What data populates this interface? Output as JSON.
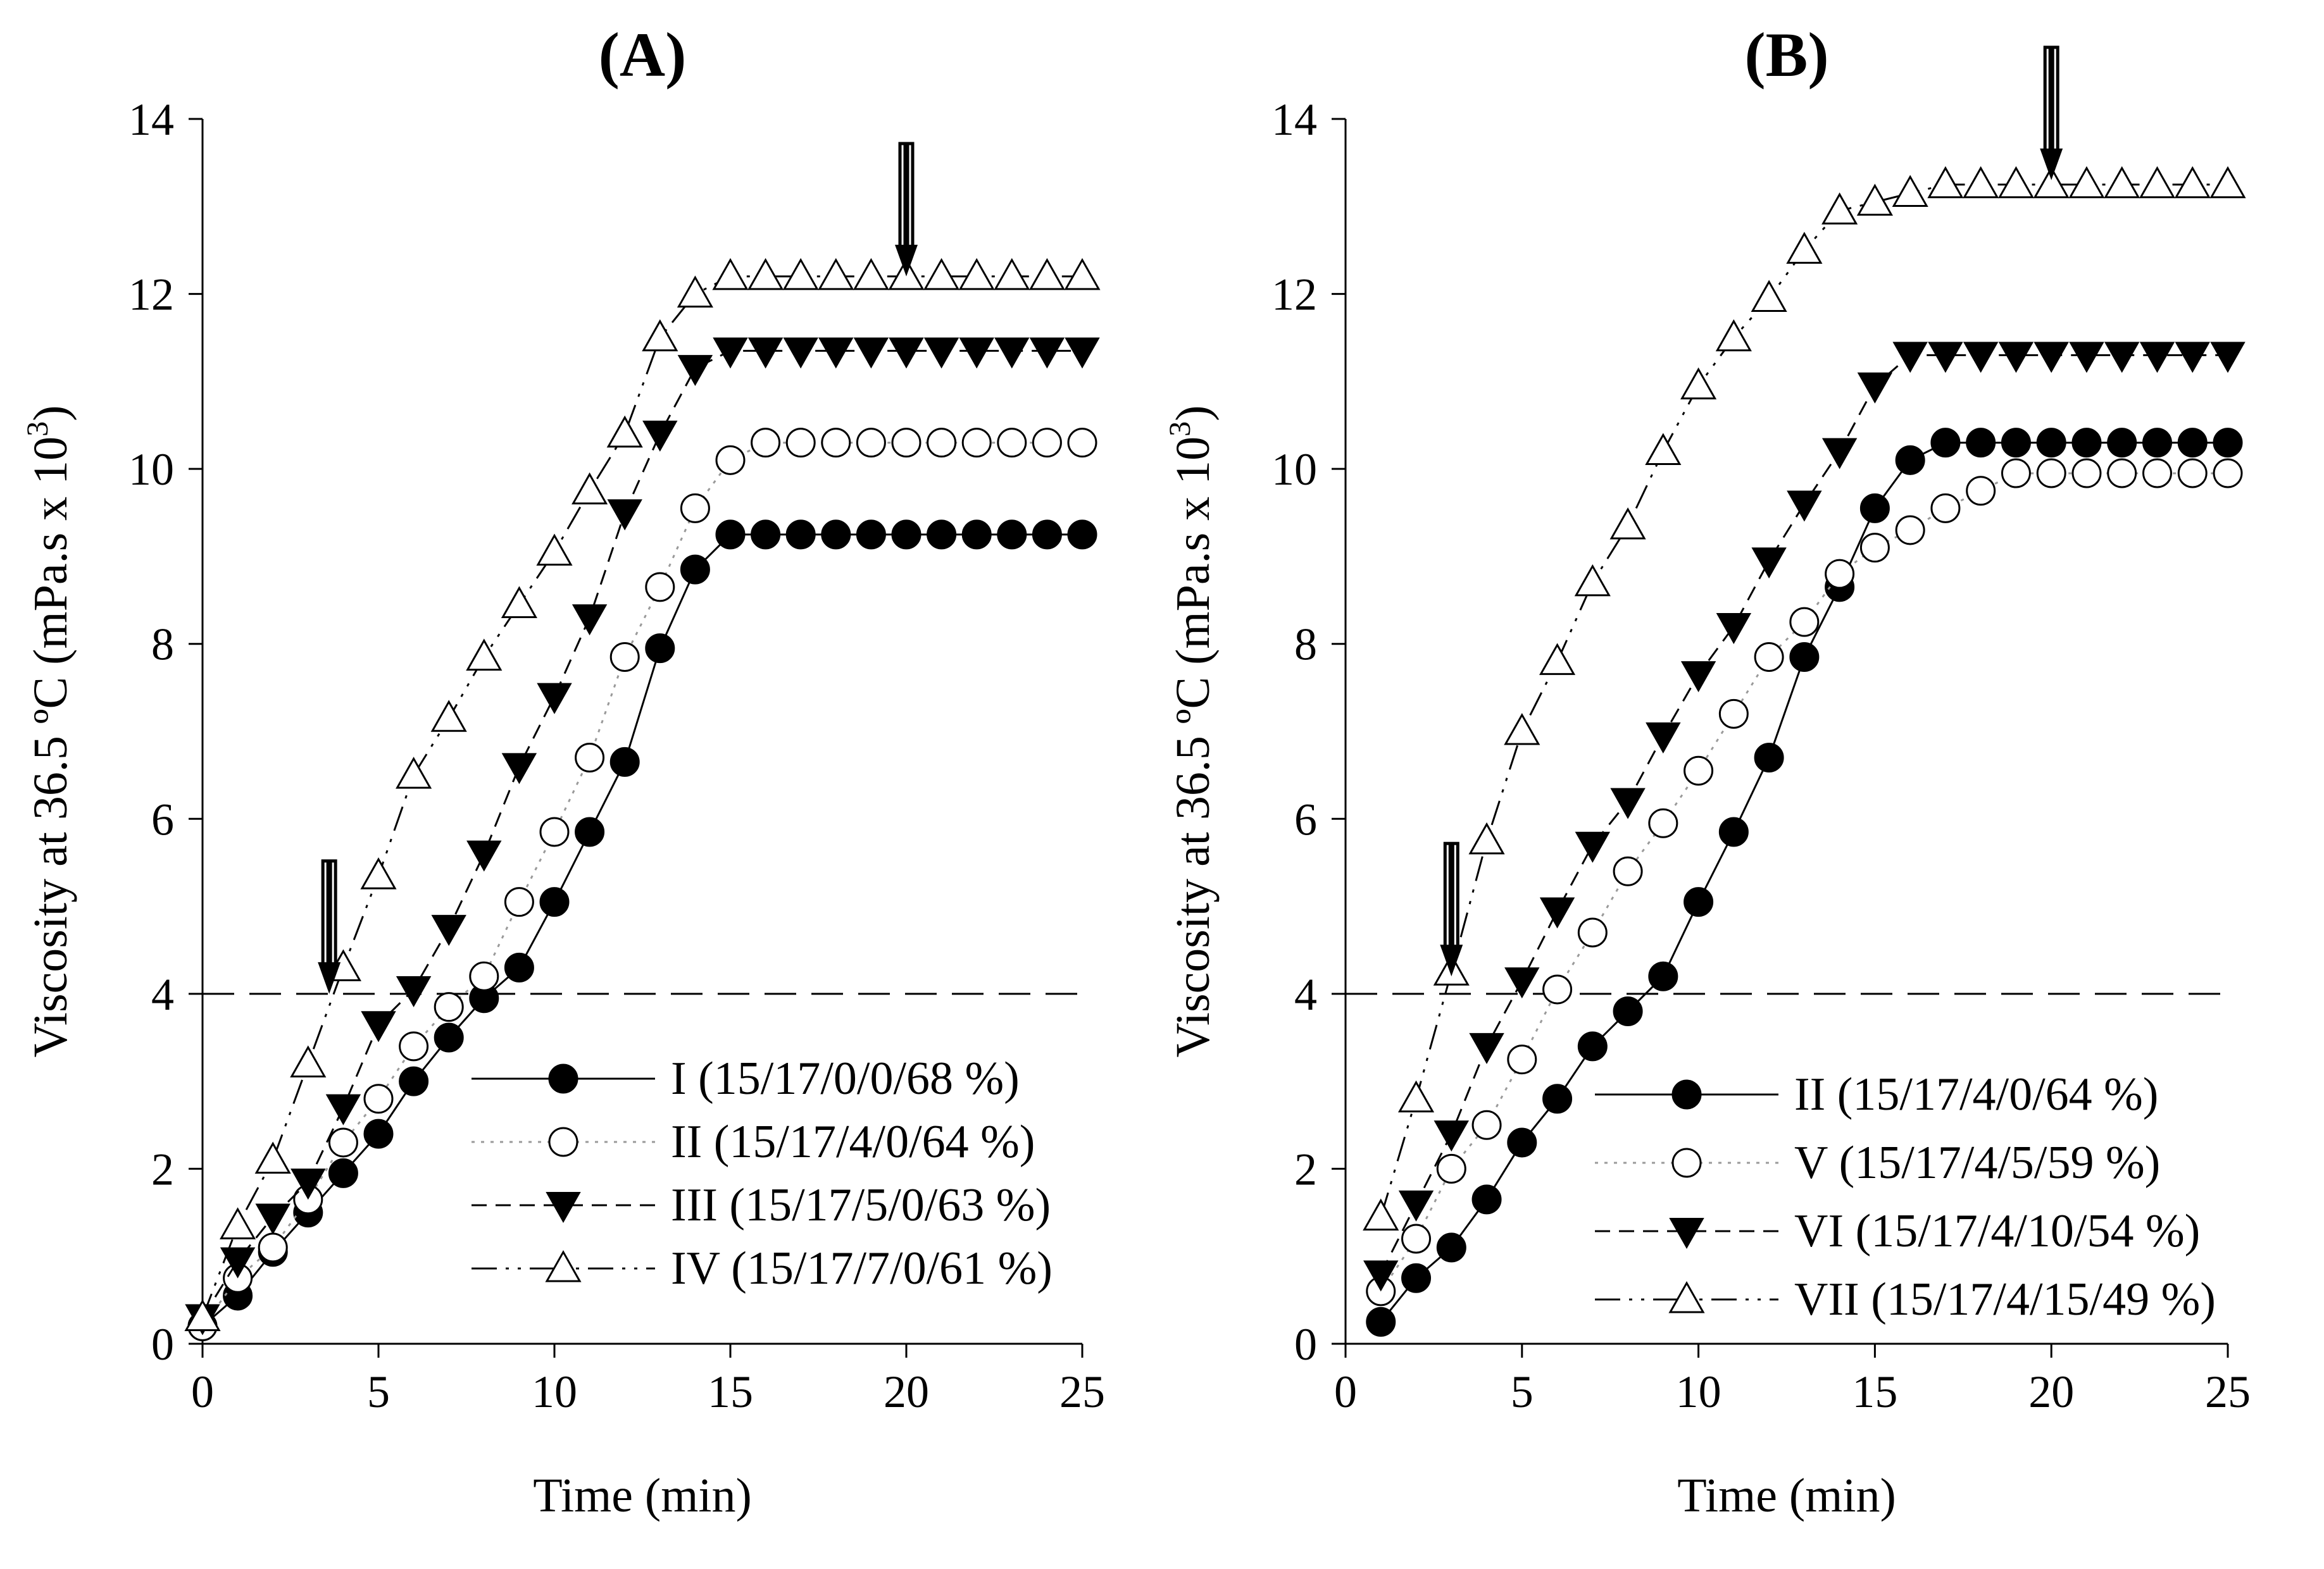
{
  "chart_data": [
    {
      "type": "line",
      "panel": "A",
      "title": "(A)",
      "xlabel": "Time (min)",
      "ylabel": "Viscosity at 36.5 ºC (mPa.s x 10^3)",
      "xlim": [
        0,
        25
      ],
      "ylim": [
        0,
        14
      ],
      "xticks": [
        0,
        5,
        10,
        15,
        20,
        25
      ],
      "yticks": [
        0,
        2,
        4,
        6,
        8,
        10,
        12,
        14
      ],
      "grid": false,
      "legend_position": "bottom-right",
      "reference_line": {
        "y": 4,
        "x_range": [
          0,
          25
        ],
        "style": "long-dash"
      },
      "arrows": [
        {
          "x": 3.6,
          "y_tip": 4.0
        },
        {
          "x": 20,
          "y_tip": 12.2
        }
      ],
      "series": [
        {
          "name": "I (15/17/0/0/68 %)",
          "marker": "filled-circle",
          "line": "solid",
          "x": [
            0,
            1,
            2,
            3,
            4,
            5,
            6,
            7,
            8,
            9,
            10,
            11,
            12,
            13,
            14,
            15,
            16,
            17,
            18,
            19,
            20,
            21,
            22,
            23,
            24,
            25
          ],
          "y": [
            0.2,
            0.55,
            1.05,
            1.5,
            1.95,
            2.4,
            3.0,
            3.5,
            3.95,
            4.3,
            5.05,
            5.85,
            6.65,
            7.95,
            8.85,
            9.25,
            9.25,
            9.25,
            9.25,
            9.25,
            9.25,
            9.25,
            9.25,
            9.25,
            9.25,
            9.25
          ]
        },
        {
          "name": "II (15/17/4/0/64 %)",
          "marker": "open-circle",
          "line": "dotted",
          "x": [
            0,
            1,
            2,
            3,
            4,
            5,
            6,
            7,
            8,
            9,
            10,
            11,
            12,
            13,
            14,
            15,
            16,
            17,
            18,
            19,
            20,
            21,
            22,
            23,
            24,
            25
          ],
          "y": [
            0.2,
            0.75,
            1.1,
            1.65,
            2.3,
            2.8,
            3.4,
            3.85,
            4.2,
            5.05,
            5.85,
            6.7,
            7.85,
            8.65,
            9.55,
            10.1,
            10.3,
            10.3,
            10.3,
            10.3,
            10.3,
            10.3,
            10.3,
            10.3,
            10.3,
            10.3
          ]
        },
        {
          "name": "III (15/17/5/0/63 %)",
          "marker": "filled-down-triangle",
          "line": "dashed",
          "x": [
            0,
            1,
            2,
            3,
            4,
            5,
            6,
            7,
            8,
            9,
            10,
            11,
            12,
            13,
            14,
            15,
            16,
            17,
            18,
            19,
            20,
            21,
            22,
            23,
            24,
            25
          ],
          "y": [
            0.3,
            0.95,
            1.45,
            1.85,
            2.7,
            3.65,
            4.05,
            4.75,
            5.6,
            6.6,
            7.4,
            8.3,
            9.5,
            10.4,
            11.15,
            11.35,
            11.35,
            11.35,
            11.35,
            11.35,
            11.35,
            11.35,
            11.35,
            11.35,
            11.35,
            11.35
          ]
        },
        {
          "name": "IV (15/17/7/0/61 %)",
          "marker": "open-up-triangle",
          "line": "dash-dot-dot",
          "x": [
            0,
            1,
            2,
            3,
            4,
            5,
            6,
            7,
            8,
            9,
            10,
            11,
            12,
            13,
            14,
            15,
            16,
            17,
            18,
            19,
            20,
            21,
            22,
            23,
            24,
            25
          ],
          "y": [
            0.3,
            1.35,
            2.1,
            3.2,
            4.3,
            5.35,
            6.5,
            7.15,
            7.85,
            8.45,
            9.05,
            9.75,
            10.4,
            11.5,
            12.0,
            12.2,
            12.2,
            12.2,
            12.2,
            12.2,
            12.2,
            12.2,
            12.2,
            12.2,
            12.2,
            12.2
          ]
        }
      ]
    },
    {
      "type": "line",
      "panel": "B",
      "title": "(B)",
      "xlabel": "Time (min)",
      "ylabel": "Viscosity at 36.5 ºC (mPa.s x 10^3)",
      "xlim": [
        0,
        25
      ],
      "ylim": [
        0,
        14
      ],
      "xticks": [
        0,
        5,
        10,
        15,
        20,
        25
      ],
      "yticks": [
        0,
        2,
        4,
        6,
        8,
        10,
        12,
        14
      ],
      "grid": false,
      "legend_position": "bottom-right",
      "reference_line": {
        "y": 4,
        "x_range": [
          0,
          25
        ],
        "style": "long-dash"
      },
      "arrows": [
        {
          "x": 3,
          "y_tip": 4.2
        },
        {
          "x": 20,
          "y_tip": 13.3
        }
      ],
      "series": [
        {
          "name": "II (15/17/4/0/64 %)",
          "marker": "filled-circle",
          "line": "solid",
          "x": [
            1,
            2,
            3,
            4,
            5,
            6,
            7,
            8,
            9,
            10,
            11,
            12,
            13,
            14,
            15,
            16,
            17,
            18,
            19,
            20,
            21,
            22,
            23,
            24,
            25
          ],
          "y": [
            0.25,
            0.75,
            1.1,
            1.65,
            2.3,
            2.8,
            3.4,
            3.8,
            4.2,
            5.05,
            5.85,
            6.7,
            7.85,
            8.65,
            9.55,
            10.1,
            10.3,
            10.3,
            10.3,
            10.3,
            10.3,
            10.3,
            10.3,
            10.3,
            10.3
          ]
        },
        {
          "name": "V (15/17/4/5/59 %)",
          "marker": "open-circle",
          "line": "dotted",
          "x": [
            1,
            2,
            3,
            4,
            5,
            6,
            7,
            8,
            9,
            10,
            11,
            12,
            13,
            14,
            15,
            16,
            17,
            18,
            19,
            20,
            21,
            22,
            23,
            24,
            25
          ],
          "y": [
            0.6,
            1.2,
            2.0,
            2.5,
            3.25,
            4.05,
            4.7,
            5.4,
            5.95,
            6.55,
            7.2,
            7.85,
            8.25,
            8.8,
            9.1,
            9.3,
            9.55,
            9.75,
            9.95,
            9.95,
            9.95,
            9.95,
            9.95,
            9.95,
            9.95
          ]
        },
        {
          "name": "VI (15/17/4/10/54 %)",
          "marker": "filled-down-triangle",
          "line": "dashed",
          "x": [
            1,
            2,
            3,
            4,
            5,
            6,
            7,
            8,
            9,
            10,
            11,
            12,
            13,
            14,
            15,
            16,
            17,
            18,
            19,
            20,
            21,
            22,
            23,
            24,
            25
          ],
          "y": [
            0.8,
            1.6,
            2.4,
            3.4,
            4.15,
            4.95,
            5.7,
            6.2,
            6.95,
            7.65,
            8.2,
            8.95,
            9.6,
            10.2,
            10.95,
            11.3,
            11.3,
            11.3,
            11.3,
            11.3,
            11.3,
            11.3,
            11.3,
            11.3,
            11.3
          ]
        },
        {
          "name": "VII (15/17/4/15/49 %)",
          "marker": "open-up-triangle",
          "line": "dash-dot-dot",
          "x": [
            1,
            2,
            3,
            4,
            5,
            6,
            7,
            8,
            9,
            10,
            11,
            12,
            13,
            14,
            15,
            16,
            17,
            18,
            19,
            20,
            21,
            22,
            23,
            24,
            25
          ],
          "y": [
            1.45,
            2.8,
            4.25,
            5.75,
            7.0,
            7.8,
            8.7,
            9.35,
            10.2,
            10.95,
            11.5,
            11.95,
            12.5,
            12.95,
            13.05,
            13.15,
            13.25,
            13.25,
            13.25,
            13.25,
            13.25,
            13.25,
            13.25,
            13.25,
            13.25
          ]
        }
      ]
    }
  ]
}
